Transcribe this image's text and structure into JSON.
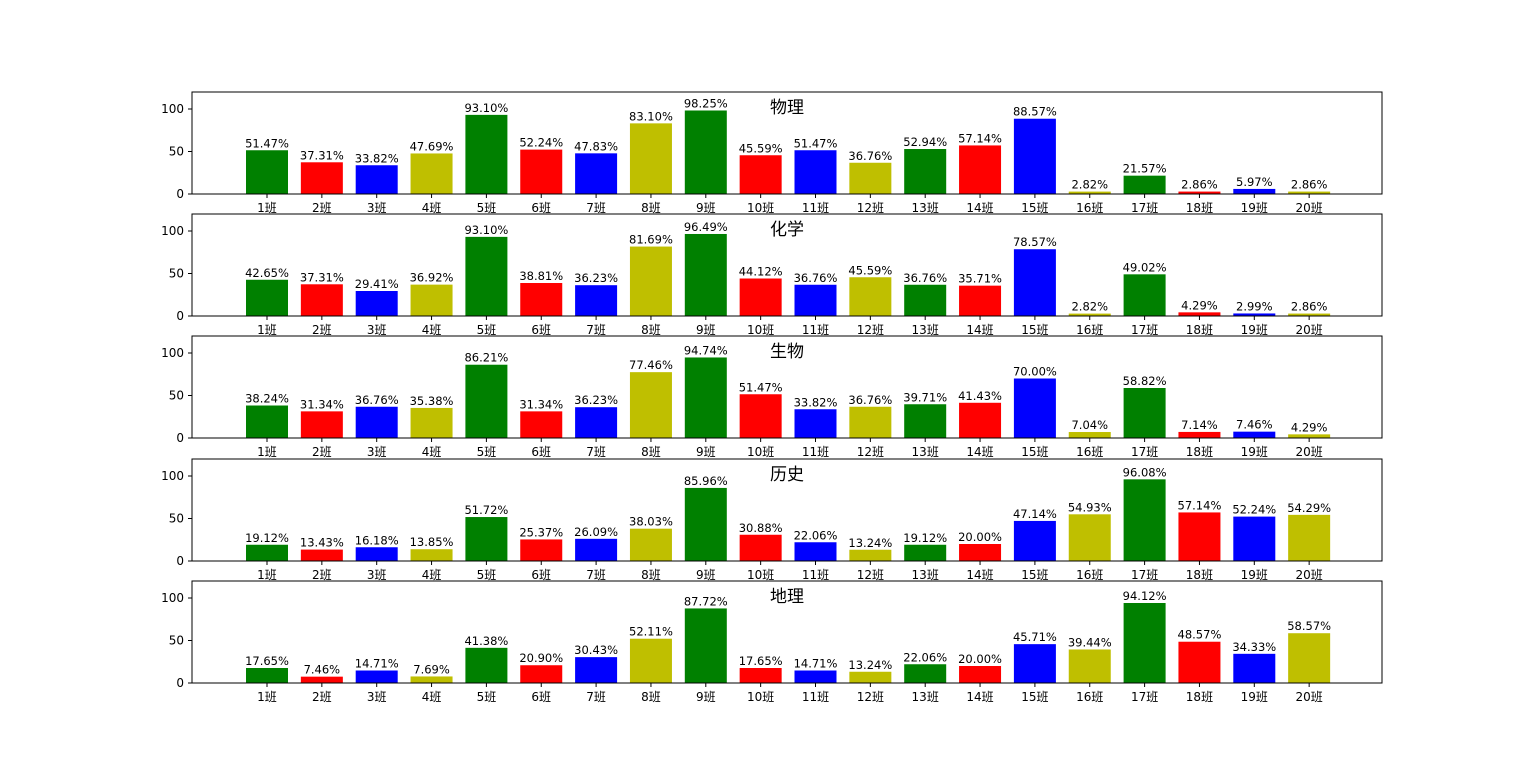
{
  "chart_data": [
    {
      "type": "bar",
      "title": "物理",
      "categories": [
        "1班",
        "2班",
        "3班",
        "4班",
        "5班",
        "6班",
        "7班",
        "8班",
        "9班",
        "10班",
        "11班",
        "12班",
        "13班",
        "14班",
        "15班",
        "16班",
        "17班",
        "18班",
        "19班",
        "20班"
      ],
      "values": [
        51.47,
        37.31,
        33.82,
        47.69,
        93.1,
        52.24,
        47.83,
        83.1,
        98.25,
        45.59,
        51.47,
        36.76,
        52.94,
        57.14,
        88.57,
        2.82,
        21.57,
        2.86,
        5.97,
        2.86
      ],
      "value_labels": [
        "51.47%",
        "37.31%",
        "33.82%",
        "47.69%",
        "93.10%",
        "52.24%",
        "47.83%",
        "83.10%",
        "98.25%",
        "45.59%",
        "51.47%",
        "36.76%",
        "52.94%",
        "57.14%",
        "88.57%",
        "2.82%",
        "21.57%",
        "2.86%",
        "5.97%",
        "2.86%"
      ],
      "ylim": [
        0,
        120
      ],
      "yticks": [
        "0",
        "50",
        "100"
      ],
      "grid": false
    },
    {
      "type": "bar",
      "title": "化学",
      "categories": [
        "1班",
        "2班",
        "3班",
        "4班",
        "5班",
        "6班",
        "7班",
        "8班",
        "9班",
        "10班",
        "11班",
        "12班",
        "13班",
        "14班",
        "15班",
        "16班",
        "17班",
        "18班",
        "19班",
        "20班"
      ],
      "values": [
        42.65,
        37.31,
        29.41,
        36.92,
        93.1,
        38.81,
        36.23,
        81.69,
        96.49,
        44.12,
        36.76,
        45.59,
        36.76,
        35.71,
        78.57,
        2.82,
        49.02,
        4.29,
        2.99,
        2.86
      ],
      "value_labels": [
        "42.65%",
        "37.31%",
        "29.41%",
        "36.92%",
        "93.10%",
        "38.81%",
        "36.23%",
        "81.69%",
        "96.49%",
        "44.12%",
        "36.76%",
        "45.59%",
        "36.76%",
        "35.71%",
        "78.57%",
        "2.82%",
        "49.02%",
        "4.29%",
        "2.99%",
        "2.86%"
      ],
      "ylim": [
        0,
        120
      ],
      "yticks": [
        "0",
        "50",
        "100"
      ],
      "grid": false
    },
    {
      "type": "bar",
      "title": "生物",
      "categories": [
        "1班",
        "2班",
        "3班",
        "4班",
        "5班",
        "6班",
        "7班",
        "8班",
        "9班",
        "10班",
        "11班",
        "12班",
        "13班",
        "14班",
        "15班",
        "16班",
        "17班",
        "18班",
        "19班",
        "20班"
      ],
      "values": [
        38.24,
        31.34,
        36.76,
        35.38,
        86.21,
        31.34,
        36.23,
        77.46,
        94.74,
        51.47,
        33.82,
        36.76,
        39.71,
        41.43,
        70.0,
        7.04,
        58.82,
        7.14,
        7.46,
        4.29
      ],
      "value_labels": [
        "38.24%",
        "31.34%",
        "36.76%",
        "35.38%",
        "86.21%",
        "31.34%",
        "36.23%",
        "77.46%",
        "94.74%",
        "51.47%",
        "33.82%",
        "36.76%",
        "39.71%",
        "41.43%",
        "70.00%",
        "7.04%",
        "58.82%",
        "7.14%",
        "7.46%",
        "4.29%"
      ],
      "ylim": [
        0,
        120
      ],
      "yticks": [
        "0",
        "50",
        "100"
      ],
      "grid": false
    },
    {
      "type": "bar",
      "title": "历史",
      "categories": [
        "1班",
        "2班",
        "3班",
        "4班",
        "5班",
        "6班",
        "7班",
        "8班",
        "9班",
        "10班",
        "11班",
        "12班",
        "13班",
        "14班",
        "15班",
        "16班",
        "17班",
        "18班",
        "19班",
        "20班"
      ],
      "values": [
        19.12,
        13.43,
        16.18,
        13.85,
        51.72,
        25.37,
        26.09,
        38.03,
        85.96,
        30.88,
        22.06,
        13.24,
        19.12,
        20.0,
        47.14,
        54.93,
        96.08,
        57.14,
        52.24,
        54.29
      ],
      "value_labels": [
        "19.12%",
        "13.43%",
        "16.18%",
        "13.85%",
        "51.72%",
        "25.37%",
        "26.09%",
        "38.03%",
        "85.96%",
        "30.88%",
        "22.06%",
        "13.24%",
        "19.12%",
        "20.00%",
        "47.14%",
        "54.93%",
        "96.08%",
        "57.14%",
        "52.24%",
        "54.29%"
      ],
      "ylim": [
        0,
        120
      ],
      "yticks": [
        "0",
        "50",
        "100"
      ],
      "grid": false
    },
    {
      "type": "bar",
      "title": "地理",
      "categories": [
        "1班",
        "2班",
        "3班",
        "4班",
        "5班",
        "6班",
        "7班",
        "8班",
        "9班",
        "10班",
        "11班",
        "12班",
        "13班",
        "14班",
        "15班",
        "16班",
        "17班",
        "18班",
        "19班",
        "20班"
      ],
      "values": [
        17.65,
        7.46,
        14.71,
        7.69,
        41.38,
        20.9,
        30.43,
        52.11,
        87.72,
        17.65,
        14.71,
        13.24,
        22.06,
        20.0,
        45.71,
        39.44,
        94.12,
        48.57,
        34.33,
        58.57
      ],
      "value_labels": [
        "17.65%",
        "7.46%",
        "14.71%",
        "7.69%",
        "41.38%",
        "20.90%",
        "30.43%",
        "52.11%",
        "87.72%",
        "17.65%",
        "14.71%",
        "13.24%",
        "22.06%",
        "20.00%",
        "45.71%",
        "39.44%",
        "94.12%",
        "48.57%",
        "34.33%",
        "58.57%"
      ],
      "ylim": [
        0,
        120
      ],
      "yticks": [
        "0",
        "50",
        "100"
      ],
      "grid": false
    }
  ],
  "colors": {
    "bar_cycle": [
      "#008000",
      "#ff0000",
      "#0000ff",
      "#bfbf00"
    ],
    "axis": "#000000",
    "background": "#ffffff"
  }
}
